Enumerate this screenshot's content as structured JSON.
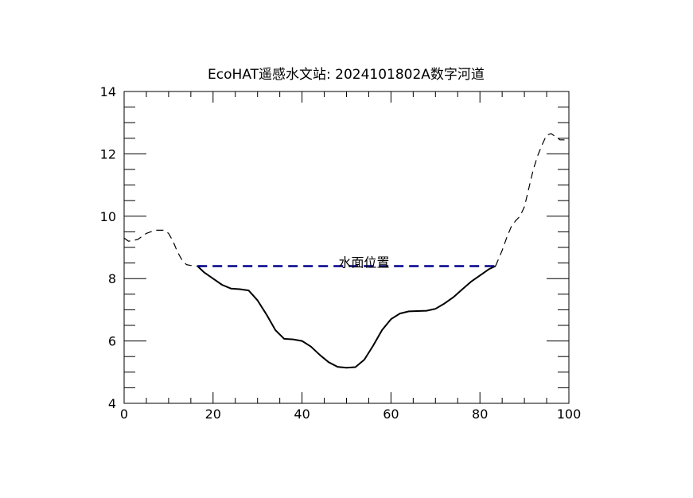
{
  "chart_data": {
    "type": "line",
    "title": "EcoHAT遥感水文站: 2024101802A数字河道",
    "xlabel": "",
    "ylabel": "",
    "xlim": [
      0,
      100
    ],
    "ylim": [
      4,
      14
    ],
    "x_ticks": [
      0,
      20,
      40,
      60,
      80,
      100
    ],
    "y_ticks": [
      4,
      6,
      8,
      10,
      12,
      14
    ],
    "x_tick_labels": [
      "0",
      "20",
      "40",
      "60",
      "80",
      "100"
    ],
    "y_tick_labels": [
      "4",
      "6",
      "8",
      "10",
      "12",
      "14"
    ],
    "grid": false,
    "annotation": {
      "text": "水面位置",
      "x": 50,
      "y": 8.4
    },
    "series": [
      {
        "style": "dashed",
        "color": "#000000",
        "points": [
          [
            0,
            9.3
          ],
          [
            1,
            9.2
          ],
          [
            3,
            9.25
          ],
          [
            5,
            9.45
          ],
          [
            7,
            9.55
          ],
          [
            9,
            9.55
          ],
          [
            10,
            9.45
          ],
          [
            11,
            9.2
          ],
          [
            12,
            8.85
          ],
          [
            13,
            8.6
          ],
          [
            14,
            8.45
          ],
          [
            15,
            8.42
          ],
          [
            16.5,
            8.4
          ]
        ]
      },
      {
        "style": "solid",
        "color": "#000000",
        "points": [
          [
            16.5,
            8.4
          ],
          [
            18,
            8.2
          ],
          [
            20,
            8.0
          ],
          [
            22,
            7.8
          ],
          [
            24,
            7.68
          ],
          [
            26,
            7.66
          ],
          [
            28,
            7.62
          ],
          [
            30,
            7.3
          ],
          [
            32,
            6.85
          ],
          [
            34,
            6.35
          ],
          [
            36,
            6.07
          ],
          [
            38,
            6.05
          ],
          [
            40,
            6.0
          ],
          [
            42,
            5.82
          ],
          [
            44,
            5.55
          ],
          [
            46,
            5.32
          ],
          [
            48,
            5.17
          ],
          [
            50,
            5.14
          ],
          [
            52,
            5.16
          ],
          [
            54,
            5.4
          ],
          [
            56,
            5.85
          ],
          [
            58,
            6.35
          ],
          [
            60,
            6.7
          ],
          [
            62,
            6.88
          ],
          [
            64,
            6.95
          ],
          [
            66,
            6.96
          ],
          [
            68,
            6.97
          ],
          [
            70,
            7.03
          ],
          [
            72,
            7.2
          ],
          [
            74,
            7.4
          ],
          [
            76,
            7.65
          ],
          [
            78,
            7.9
          ],
          [
            80,
            8.1
          ],
          [
            82,
            8.3
          ],
          [
            83.5,
            8.4
          ]
        ]
      },
      {
        "style": "dashed",
        "color": "#000000",
        "points": [
          [
            83.5,
            8.4
          ],
          [
            85,
            8.9
          ],
          [
            86,
            9.3
          ],
          [
            87,
            9.65
          ],
          [
            88,
            9.85
          ],
          [
            89,
            10.0
          ],
          [
            90,
            10.3
          ],
          [
            91,
            10.9
          ],
          [
            92,
            11.5
          ],
          [
            93,
            11.95
          ],
          [
            94,
            12.3
          ],
          [
            95,
            12.6
          ],
          [
            96,
            12.65
          ],
          [
            97,
            12.55
          ],
          [
            98,
            12.45
          ],
          [
            99,
            12.45
          ]
        ]
      },
      {
        "style": "dashed",
        "color": "#00008B",
        "points": [
          [
            16.5,
            8.4
          ],
          [
            83.5,
            8.4
          ]
        ]
      }
    ]
  }
}
